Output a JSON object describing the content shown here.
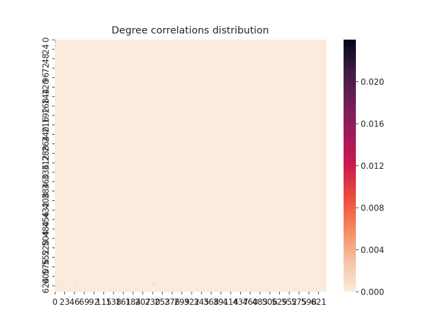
{
  "chart_data": {
    "type": "heatmap",
    "title": "Degree correlations distribution",
    "xlabel": "",
    "ylabel": "",
    "x_tick_labels": [
      "0",
      "23",
      "46",
      "69",
      "92",
      "115",
      "138",
      "161",
      "184",
      "207",
      "230",
      "253",
      "276",
      "299",
      "322",
      "345",
      "368",
      "391",
      "414",
      "437",
      "460",
      "483",
      "506",
      "529",
      "552",
      "575",
      "598",
      "621"
    ],
    "y_tick_labels": [
      "0",
      "24",
      "48",
      "72",
      "96",
      "120",
      "144",
      "168",
      "192",
      "216",
      "240",
      "264",
      "288",
      "312",
      "336",
      "360",
      "384",
      "408",
      "432",
      "456",
      "480",
      "504",
      "528",
      "552",
      "576",
      "600",
      "624"
    ],
    "grid": "off",
    "colorbar": {
      "ticks": [
        "0.000",
        "0.004",
        "0.008",
        "0.012",
        "0.016",
        "0.020"
      ],
      "vmin": 0.0,
      "vmax": 0.024,
      "colormap": "rocket_r",
      "low_color": "#faebdd",
      "high_color": "#03051a"
    },
    "baseline_value": 0.0,
    "highlights": [
      {
        "x": 0,
        "y": 0,
        "value": 0.008
      },
      {
        "x": 0,
        "y": 6,
        "value": 0.006
      },
      {
        "x": 0,
        "y": 14,
        "value": 0.005
      },
      {
        "x": 2,
        "y": 624,
        "value": 0.003
      },
      {
        "x": 15,
        "y": 620,
        "value": 0.002
      },
      {
        "x": 46,
        "y": 618,
        "value": 0.002
      },
      {
        "x": 50,
        "y": 615,
        "value": 0.002
      },
      {
        "x": 145,
        "y": 622,
        "value": 0.002
      },
      {
        "x": 231,
        "y": 621,
        "value": 0.002
      },
      {
        "x": 233,
        "y": 620,
        "value": 0.003
      },
      {
        "x": 248,
        "y": 598,
        "value": 0.002
      },
      {
        "x": 630,
        "y": 10,
        "value": 0.002
      },
      {
        "x": 630,
        "y": 620,
        "value": 0.003
      }
    ]
  }
}
